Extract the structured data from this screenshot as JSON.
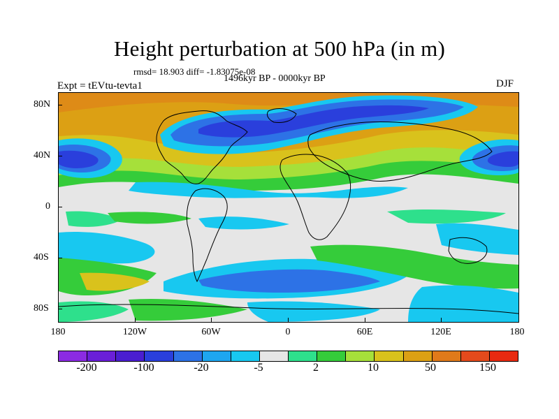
{
  "title": "Height perturbation at 500 hPa (in m)",
  "stats": "rmsd= 18.903 diff= -1.83075e-08",
  "period": "1496kyr BP - 0000kyr BP",
  "experiment": "Expt = tEVtu-tevta1",
  "season": "DJF",
  "lat_ticks": [
    "80N",
    "40N",
    "0",
    "40S",
    "80S"
  ],
  "lon_ticks": [
    "180",
    "120W",
    "60W",
    "0",
    "60E",
    "120E",
    "180"
  ],
  "colorbar": {
    "colors": [
      "#8b2be2",
      "#6a1fd8",
      "#4a1ed0",
      "#2a3fdc",
      "#2d72e6",
      "#1ea6f0",
      "#18c8f0",
      "#e6e6e6",
      "#2ee08c",
      "#35cc3a",
      "#a6e03a",
      "#d9c21c",
      "#dca014",
      "#e07a1a",
      "#e44a1c",
      "#e82a10"
    ],
    "labels": [
      "-200",
      "-100",
      "-20",
      "-5",
      "2",
      "10",
      "50",
      "150"
    ]
  },
  "palette": {
    "deep_blue": "#2a3fdc",
    "blue": "#2d72e6",
    "light_blue": "#18c8f0",
    "neutral": "#e6e6e6",
    "green": "#35cc3a",
    "light_green": "#2ee08c",
    "lime": "#a6e03a",
    "yellow": "#d9c21c",
    "orange": "#dca014",
    "dark_orange": "#e07a1a"
  }
}
